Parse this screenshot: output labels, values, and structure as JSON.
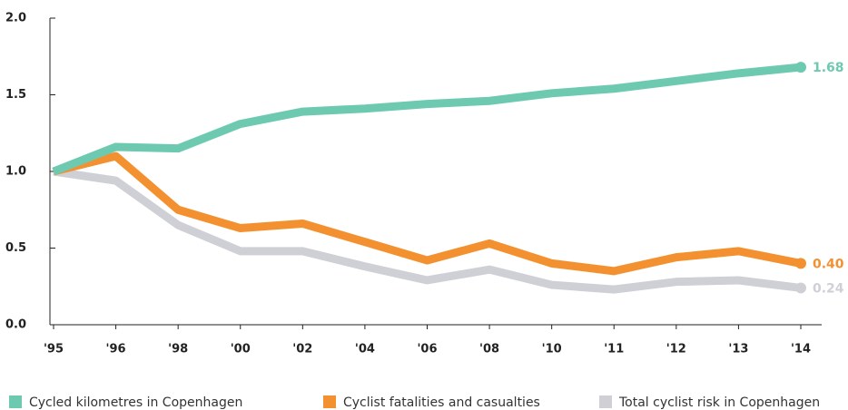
{
  "chart_data": {
    "type": "line",
    "categories": [
      "'95",
      "'96",
      "'98",
      "'00",
      "'02",
      "'04",
      "'06",
      "'08",
      "'10",
      "'11",
      "'12",
      "'13",
      "'14"
    ],
    "series": [
      {
        "name": "Cycled kilometres in Copenhagen",
        "color": "#6dcab0",
        "values": [
          1.0,
          1.16,
          1.15,
          1.31,
          1.39,
          1.41,
          1.44,
          1.46,
          1.51,
          1.54,
          1.59,
          1.64,
          1.68
        ],
        "value_labels": [
          null,
          null,
          null,
          null,
          null,
          null,
          null,
          null,
          null,
          null,
          null,
          null,
          "1.68"
        ]
      },
      {
        "name": "Cyclist fatalities and casualties",
        "color": "#f39130",
        "values": [
          1.0,
          1.1,
          0.75,
          0.63,
          0.66,
          0.54,
          0.42,
          0.53,
          0.4,
          0.35,
          0.44,
          0.48,
          0.4
        ],
        "value_labels": [
          null,
          null,
          null,
          null,
          null,
          null,
          null,
          null,
          null,
          null,
          null,
          null,
          "0.40"
        ]
      },
      {
        "name": "Total cyclist risk in Copenhagen",
        "color": "#cfd0d6",
        "values": [
          1.0,
          0.94,
          0.65,
          0.48,
          0.48,
          0.38,
          0.29,
          0.36,
          0.26,
          0.23,
          0.28,
          0.29,
          0.24
        ],
        "value_labels": [
          null,
          null,
          null,
          null,
          null,
          null,
          null,
          null,
          null,
          null,
          null,
          null,
          "0.24"
        ]
      }
    ],
    "ylim": [
      0,
      2
    ],
    "yticks": [
      {
        "value": 0,
        "label": "0.0"
      },
      0.5,
      {
        "value": 1,
        "label": "1.0"
      },
      1.5,
      {
        "value": 2,
        "label": "2.0"
      }
    ],
    "grid": false,
    "legend": "bottom"
  }
}
